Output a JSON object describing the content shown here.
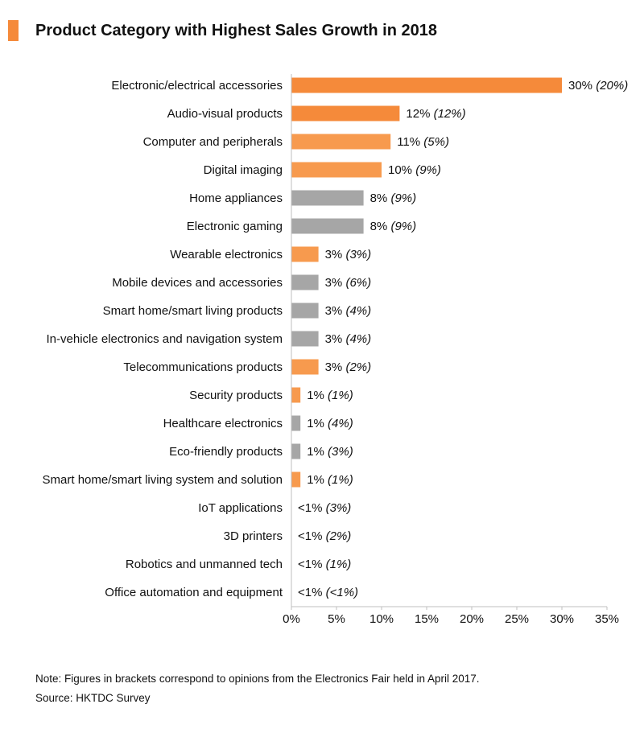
{
  "chart_data": {
    "type": "bar",
    "orientation": "horizontal",
    "title": "Product Category with Highest Sales Growth in 2018",
    "categories": [
      "Electronic/electrical accessories",
      "Audio-visual products",
      "Computer and peripherals",
      "Digital imaging",
      "Home appliances",
      "Electronic gaming",
      "Wearable electronics",
      "Mobile devices and accessories",
      "Smart home/smart living products",
      "In-vehicle electronics and navigation system",
      "Telecommunications products",
      "Security products",
      "Healthcare electronics",
      "Eco-friendly products",
      "Smart home/smart living system and solution",
      "IoT applications",
      "3D printers",
      "Robotics and unmanned tech",
      "Office automation and equipment"
    ],
    "values": [
      30,
      12,
      11,
      10,
      8,
      8,
      3,
      3,
      3,
      3,
      3,
      1,
      1,
      1,
      1,
      0,
      0,
      0,
      0
    ],
    "value_labels": [
      "30%",
      "12%",
      "11%",
      "10%",
      "8%",
      "8%",
      "3%",
      "3%",
      "3%",
      "3%",
      "3%",
      "1%",
      "1%",
      "1%",
      "1%",
      "<1%",
      "<1%",
      "<1%",
      "<1%"
    ],
    "previous_labels": [
      "(20%)",
      "(12%)",
      "(5%)",
      "(9%)",
      "(9%)",
      "(9%)",
      "(3%)",
      "(6%)",
      "(4%)",
      "(4%)",
      "(2%)",
      "(1%)",
      "(4%)",
      "(3%)",
      "(1%)",
      "(3%)",
      "(2%)",
      "(1%)",
      "(<1%)"
    ],
    "highlight": [
      true,
      true,
      true,
      true,
      false,
      false,
      true,
      false,
      false,
      false,
      true,
      true,
      false,
      false,
      true,
      false,
      false,
      false,
      false
    ],
    "xlim": [
      0,
      35
    ],
    "xticks": [
      "0%",
      "5%",
      "10%",
      "15%",
      "20%",
      "25%",
      "30%",
      "35%"
    ],
    "grid": false,
    "colors": {
      "highlight": "#f58a3a",
      "highlight_light": "#f79a4e",
      "neutral": "#a6a6a6",
      "axis": "#bfbfbf"
    }
  },
  "notes": {
    "note": "Note: Figures in brackets correspond to opinions from the Electronics Fair held in April 2017.",
    "source": "Source: HKTDC Survey"
  }
}
